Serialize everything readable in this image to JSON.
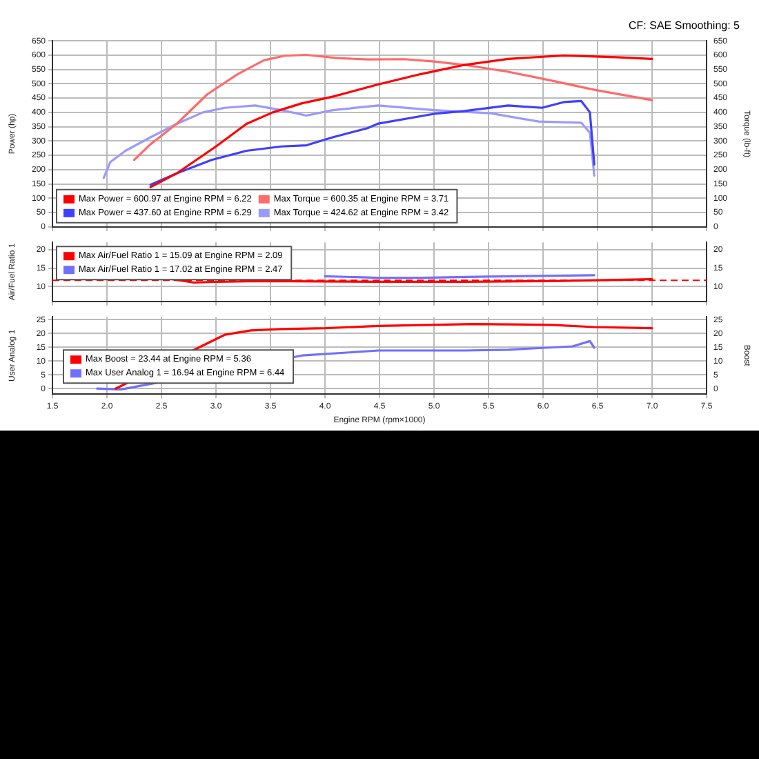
{
  "chart_data": [
    {
      "type": "line",
      "subtitle": "CF: SAE Smoothing: 5",
      "ylabel": "Power (hp)",
      "y2label": "Torque (lb-ft)",
      "xlim": [
        1.5,
        7.5
      ],
      "xticks": [
        1.5,
        2,
        2.5,
        3,
        3.5,
        4,
        4.5,
        5,
        5.5,
        6,
        6.5,
        7,
        7.5
      ],
      "ylim": [
        0,
        650
      ],
      "yticks": [
        0,
        50,
        100,
        150,
        200,
        250,
        300,
        350,
        400,
        450,
        500,
        550,
        600,
        650
      ],
      "y2lim": [
        0,
        650
      ],
      "y2ticks": [
        0,
        50,
        100,
        150,
        200,
        250,
        300,
        350,
        400,
        450,
        500,
        550,
        600,
        650
      ],
      "tick_labels": "y",
      "grid": true,
      "legend": "bottom left",
      "series": [
        {
          "name": "Max Power = 600.97 at Engine RPM = 6.22",
          "color": "#ff0000",
          "x": [
            2.4,
            2.64,
            3.0,
            3.28,
            3.52,
            3.79,
            4.07,
            4.49,
            4.88,
            5.28,
            5.68,
            6.19,
            6.67,
            7.0
          ],
          "values": [
            139,
            187,
            281,
            360,
            400,
            432,
            455,
            498,
            534,
            566,
            587,
            599,
            593,
            587
          ]
        },
        {
          "name": "Max Power = 437.60 at Engine RPM = 6.29",
          "color": "#3f3fff",
          "x": [
            2.4,
            2.64,
            2.96,
            3.28,
            3.6,
            3.83,
            4.07,
            4.39,
            4.49,
            5.0,
            5.28,
            5.68,
            5.99,
            6.19,
            6.35,
            6.43,
            6.47
          ],
          "values": [
            147,
            187,
            234,
            266,
            281,
            285,
            313,
            345,
            361,
            395,
            405,
            424,
            416,
            436,
            440,
            400,
            218
          ]
        },
        {
          "name": "Max Torque = 600.35 at Engine RPM = 3.71",
          "color": "#ff6a6a",
          "x": [
            2.25,
            2.4,
            2.64,
            2.92,
            3.2,
            3.44,
            3.63,
            3.83,
            4.11,
            4.39,
            4.73,
            5.0,
            5.28,
            5.68,
            6.08,
            6.47,
            7.0
          ],
          "values": [
            234,
            289,
            360,
            463,
            534,
            582,
            598,
            601,
            590,
            585,
            586,
            578,
            566,
            542,
            511,
            479,
            443
          ]
        },
        {
          "name": "Max Torque = 424.62 at Engine RPM = 3.42",
          "color": "#9a9aff",
          "x": [
            1.97,
            2.03,
            2.17,
            2.4,
            2.64,
            2.88,
            3.08,
            3.36,
            3.6,
            3.83,
            4.07,
            4.49,
            5.0,
            5.52,
            5.96,
            6.35,
            6.43,
            6.47
          ],
          "values": [
            171,
            226,
            266,
            313,
            360,
            400,
            416,
            424,
            408,
            389,
            408,
            424,
            408,
            397,
            368,
            364,
            329,
            179
          ]
        }
      ]
    },
    {
      "type": "line",
      "ylabel": "Air/Fuel Ratio 1",
      "xlim": [
        1.5,
        7.5
      ],
      "xticks": [
        1.5,
        2,
        2.5,
        3,
        3.5,
        4,
        4.5,
        5,
        5.5,
        6,
        6.5,
        7,
        7.5
      ],
      "ylim": [
        6,
        22
      ],
      "yticks": [
        10,
        15,
        20
      ],
      "y2lim": [
        6,
        22
      ],
      "y2ticks": [
        10,
        15,
        20
      ],
      "tick_labels": "y",
      "grid": true,
      "legend": "top left",
      "ref_lines": [
        {
          "axis": "y",
          "value": 11.7,
          "color": "#ff0000",
          "line_style": "dashed"
        }
      ],
      "series": [
        {
          "name": "Max Air/Fuel Ratio 1 = 15.09 at Engine RPM = 2.09",
          "color": "#ff0000",
          "x": [
            2.6,
            2.8,
            3.0,
            3.4,
            4.49,
            5.28,
            6.08,
            7.0
          ],
          "values": [
            12.0,
            11.1,
            11.3,
            11.5,
            11.3,
            11.3,
            11.5,
            12.0
          ]
        },
        {
          "name": "Max Air/Fuel Ratio 1 = 17.02 at Engine RPM = 2.47",
          "color": "#7070ff",
          "x": [
            4.0,
            4.49,
            4.88,
            5.48,
            6.47
          ],
          "values": [
            12.8,
            12.4,
            12.4,
            12.7,
            13.1
          ]
        }
      ]
    },
    {
      "type": "line",
      "xlabel": "Engine RPM (rpm×1000)",
      "ylabel": "User Analog 1",
      "y2label": "Boost",
      "xlim": [
        1.5,
        7.5
      ],
      "xticks": [
        1.5,
        {
          "value": 2,
          "label": "2.0"
        },
        2.5,
        {
          "value": 3,
          "label": "3.0"
        },
        3.5,
        {
          "value": 4,
          "label": "4.0"
        },
        4.5,
        {
          "value": 5,
          "label": "5.0"
        },
        5.5,
        {
          "value": 6,
          "label": "6.0"
        },
        6.5,
        {
          "value": 7,
          "label": "7.0"
        },
        7.5
      ],
      "ylim": [
        -2,
        26
      ],
      "yticks": [
        0,
        5,
        10,
        15,
        20,
        25
      ],
      "y2lim": [
        -2,
        26
      ],
      "y2ticks": [
        0,
        5,
        10,
        15,
        20,
        25
      ],
      "grid": true,
      "legend": "bottom left",
      "series": [
        {
          "name": "Max Boost = 23.44 at Engine RPM = 5.36",
          "color": "#ff0000",
          "x": [
            2.08,
            2.88,
            3.08,
            3.32,
            3.6,
            4.0,
            4.49,
            5.36,
            6.08,
            6.47,
            7.0
          ],
          "values": [
            0,
            15.6,
            19.5,
            21.1,
            21.6,
            21.9,
            22.7,
            23.4,
            23.1,
            22.3,
            21.9
          ]
        },
        {
          "name": "Max User Analog 1 = 16.94 at Engine RPM = 6.44",
          "color": "#7070ff",
          "x": [
            1.91,
            2.13,
            3.79,
            4.49,
            5.28,
            5.68,
            6.27,
            6.43,
            6.47
          ],
          "values": [
            0,
            -0.3,
            12.0,
            13.8,
            13.8,
            14.1,
            15.3,
            17.2,
            14.8
          ]
        }
      ]
    }
  ]
}
